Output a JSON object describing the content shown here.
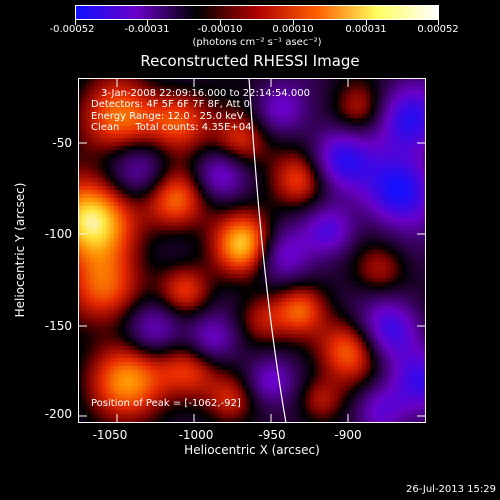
{
  "colorbar": {
    "stops": [
      "#1010ff",
      "#6a00c8",
      "#000000",
      "#b00000",
      "#ff6000",
      "#ffff60",
      "#ffffff"
    ],
    "ticks": [
      "-0.00052",
      "-0.00031",
      "-0.00010",
      "0.00010",
      "0.00031",
      "0.00052"
    ],
    "units": "(photons cm⁻² s⁻¹ asec⁻²)"
  },
  "title": "Reconstructed RHESSI Image",
  "info": {
    "line1": "3-Jan-2008 22:09:16.000 to 22:14:54.000",
    "line2": "Detectors: 4F 5F 6F 7F 8F, Att 0",
    "line3": "Energy Range: 12.0 - 25.0 keV",
    "line4": "Clean     Total counts: 4.35E+04",
    "peak": "Position of Peak = [-1062,-92]"
  },
  "axes": {
    "xlabel": "Heliocentric X (arcsec)",
    "ylabel": "Heliocentric Y (arcsec)",
    "xticks": [
      "-1050",
      "-1000",
      "-950",
      "-900"
    ],
    "yticks": [
      "-50",
      "-100",
      "-150",
      "-200"
    ]
  },
  "datestamp": "26-Jul-2013 15:29"
}
